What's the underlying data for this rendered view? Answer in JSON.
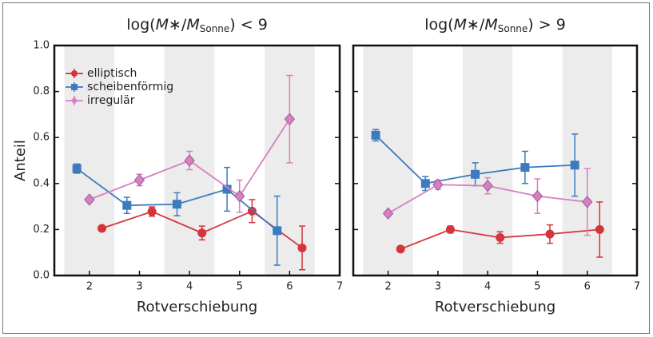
{
  "chart_data": [
    {
      "type": "errorbar-line",
      "title": [
        "log(",
        "M",
        "∗/",
        "M",
        "Sonne",
        ") < 9"
      ],
      "xlabel": "Rotverschiebung",
      "ylabel": "Anteil",
      "xlim": [
        1.3,
        7
      ],
      "ylim": [
        0,
        1
      ],
      "xticks": [
        2,
        3,
        4,
        5,
        6,
        7
      ],
      "yticks": [
        {
          "value": 0,
          "label": "0.0"
        },
        0.2,
        0.4,
        0.6,
        0.8,
        {
          "value": 1,
          "label": "1.0"
        }
      ],
      "ytick_labels": true,
      "legend": "upper left",
      "bands": [
        [
          1.5,
          2.5
        ],
        [
          3.5,
          4.5
        ],
        [
          5.5,
          6.5
        ]
      ],
      "series": [
        {
          "name": "elliptisch",
          "color": "#d4343a",
          "marker": "circle",
          "x": [
            2.25,
            3.25,
            4.25,
            5.25,
            6.25
          ],
          "values": [
            0.205,
            0.278,
            0.185,
            0.28,
            0.12
          ],
          "errors": [
            0.01,
            0.02,
            0.03,
            0.05,
            0.095
          ]
        },
        {
          "name": "scheibenförmig",
          "color": "#3b7bbf",
          "marker": "square",
          "x": [
            1.75,
            2.75,
            3.75,
            4.75,
            5.75
          ],
          "values": [
            0.465,
            0.305,
            0.31,
            0.375,
            0.195
          ],
          "errors": [
            0.02,
            0.035,
            0.05,
            0.095,
            0.15
          ]
        },
        {
          "name": "irregulär",
          "color": "#d77fc0",
          "marker": "diamond",
          "x": [
            2,
            3,
            4,
            5,
            6
          ],
          "values": [
            0.33,
            0.415,
            0.5,
            0.345,
            0.68
          ],
          "errors": [
            0.01,
            0.025,
            0.04,
            0.07,
            0.19
          ]
        }
      ]
    },
    {
      "type": "errorbar-line",
      "title": [
        "log(",
        "M",
        "∗/",
        "M",
        "Sonne",
        ") > 9"
      ],
      "xlabel": "Rotverschiebung",
      "xlim": [
        1.3,
        7
      ],
      "ylim": [
        0,
        1
      ],
      "xticks": [
        2,
        3,
        4,
        5,
        6,
        7
      ],
      "yticks": [
        0,
        0.2,
        0.4,
        0.6,
        0.8,
        1
      ],
      "ytick_labels": false,
      "bands": [
        [
          1.5,
          2.5
        ],
        [
          3.5,
          4.5
        ],
        [
          5.5,
          6.5
        ]
      ],
      "series": [
        {
          "name": "elliptisch",
          "color": "#d4343a",
          "marker": "circle",
          "x": [
            2.25,
            3.25,
            4.25,
            5.25,
            6.25
          ],
          "values": [
            0.115,
            0.2,
            0.165,
            0.18,
            0.2
          ],
          "errors": [
            0.005,
            0.015,
            0.025,
            0.04,
            0.12
          ]
        },
        {
          "name": "scheibenförmig",
          "color": "#3b7bbf",
          "marker": "square",
          "x": [
            1.75,
            2.75,
            3.75,
            4.75,
            5.75
          ],
          "values": [
            0.61,
            0.4,
            0.44,
            0.47,
            0.48
          ],
          "errors": [
            0.025,
            0.03,
            0.05,
            0.07,
            0.135
          ]
        },
        {
          "name": "irregulär",
          "color": "#d77fc0",
          "marker": "diamond",
          "x": [
            2,
            3,
            4,
            5,
            6
          ],
          "values": [
            0.27,
            0.395,
            0.39,
            0.345,
            0.32
          ],
          "errors": [
            0.01,
            0.02,
            0.035,
            0.075,
            0.145
          ]
        }
      ]
    }
  ]
}
